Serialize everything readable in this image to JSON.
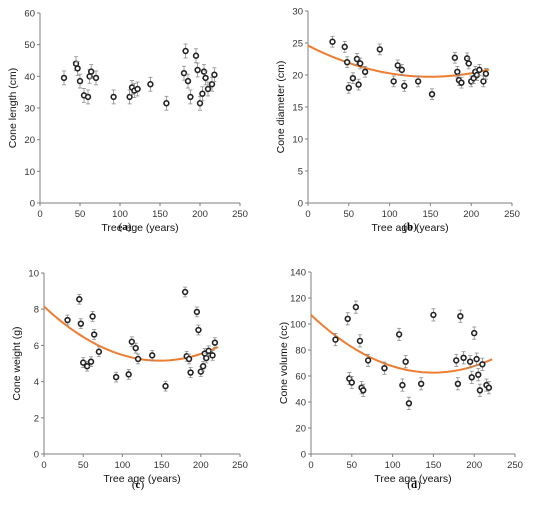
{
  "colors": {
    "fit": "#ed7d31",
    "axis": "#7f7f7f",
    "marker": "#222222",
    "errorbar": "#8c8c8c"
  },
  "chart_data": [
    {
      "type": "scatter",
      "panel_label": "a",
      "xlabel": "Tree age (years)",
      "ylabel": "Cone length (cm)",
      "xlim": [
        0,
        250
      ],
      "ylim": [
        0,
        60
      ],
      "xticks": [
        0,
        50,
        100,
        150,
        200,
        250
      ],
      "yticks": [
        0,
        10,
        20,
        30,
        40,
        50,
        60
      ],
      "grid": false,
      "points": [
        {
          "x": 30,
          "y": 39.5
        },
        {
          "x": 45,
          "y": 44
        },
        {
          "x": 47,
          "y": 42.5
        },
        {
          "x": 50,
          "y": 38.5
        },
        {
          "x": 55,
          "y": 34
        },
        {
          "x": 60,
          "y": 33.5
        },
        {
          "x": 62,
          "y": 40
        },
        {
          "x": 64,
          "y": 41.5
        },
        {
          "x": 70,
          "y": 39.5
        },
        {
          "x": 92,
          "y": 33.5
        },
        {
          "x": 112,
          "y": 33.5
        },
        {
          "x": 115,
          "y": 36.5
        },
        {
          "x": 118,
          "y": 35.5
        },
        {
          "x": 122,
          "y": 36
        },
        {
          "x": 138,
          "y": 37.5
        },
        {
          "x": 158,
          "y": 31.5
        },
        {
          "x": 180,
          "y": 41
        },
        {
          "x": 182,
          "y": 48
        },
        {
          "x": 185,
          "y": 38.5
        },
        {
          "x": 188,
          "y": 33.5
        },
        {
          "x": 195,
          "y": 46.5
        },
        {
          "x": 197,
          "y": 42
        },
        {
          "x": 200,
          "y": 31.5
        },
        {
          "x": 203,
          "y": 34.5
        },
        {
          "x": 205,
          "y": 41.5
        },
        {
          "x": 207,
          "y": 39.5
        },
        {
          "x": 210,
          "y": 36
        },
        {
          "x": 215,
          "y": 37.5
        },
        {
          "x": 218,
          "y": 40.5
        }
      ],
      "error": 1.5,
      "fit": null
    },
    {
      "type": "scatter",
      "panel_label": "b",
      "xlabel": "Tree age (years)",
      "ylabel": "Cone diameter (cm)",
      "xlim": [
        0,
        250
      ],
      "ylim": [
        0,
        30
      ],
      "xticks": [
        0,
        50,
        100,
        150,
        200,
        250
      ],
      "yticks": [
        0,
        5,
        10,
        15,
        20,
        25,
        30
      ],
      "grid": false,
      "points": [
        {
          "x": 30,
          "y": 25.2
        },
        {
          "x": 45,
          "y": 24.4
        },
        {
          "x": 48,
          "y": 22
        },
        {
          "x": 50,
          "y": 18
        },
        {
          "x": 55,
          "y": 19.5
        },
        {
          "x": 60,
          "y": 22.5
        },
        {
          "x": 62,
          "y": 18.5
        },
        {
          "x": 64,
          "y": 21.8
        },
        {
          "x": 70,
          "y": 20.5
        },
        {
          "x": 88,
          "y": 24
        },
        {
          "x": 105,
          "y": 19
        },
        {
          "x": 110,
          "y": 21.5
        },
        {
          "x": 115,
          "y": 20.8
        },
        {
          "x": 118,
          "y": 18.3
        },
        {
          "x": 135,
          "y": 19
        },
        {
          "x": 152,
          "y": 17
        },
        {
          "x": 180,
          "y": 22.7
        },
        {
          "x": 183,
          "y": 20.5
        },
        {
          "x": 185,
          "y": 19.2
        },
        {
          "x": 188,
          "y": 18.8
        },
        {
          "x": 195,
          "y": 22.6
        },
        {
          "x": 197,
          "y": 21.8
        },
        {
          "x": 200,
          "y": 19
        },
        {
          "x": 203,
          "y": 19.5
        },
        {
          "x": 205,
          "y": 20.5
        },
        {
          "x": 207,
          "y": 20
        },
        {
          "x": 210,
          "y": 20.8
        },
        {
          "x": 215,
          "y": 19
        },
        {
          "x": 218,
          "y": 20.2
        }
      ],
      "error": 0.5,
      "fit": {
        "x_range": [
          0,
          222
        ],
        "coefficients": [
          24.6,
          -0.0652,
          0.000218
        ]
      }
    },
    {
      "type": "scatter",
      "panel_label": "c",
      "xlabel": "Tree age (years)",
      "ylabel": "Cone weight (g)",
      "xlim": [
        0,
        250
      ],
      "ylim": [
        0,
        10
      ],
      "xticks": [
        0,
        50,
        100,
        150,
        200,
        250
      ],
      "yticks": [
        0,
        2,
        4,
        6,
        8,
        10
      ],
      "grid": false,
      "points": [
        {
          "x": 30,
          "y": 7.4
        },
        {
          "x": 45,
          "y": 8.55
        },
        {
          "x": 47,
          "y": 7.2
        },
        {
          "x": 50,
          "y": 5.05
        },
        {
          "x": 55,
          "y": 4.85
        },
        {
          "x": 60,
          "y": 5.1
        },
        {
          "x": 62,
          "y": 7.6
        },
        {
          "x": 64,
          "y": 6.6
        },
        {
          "x": 70,
          "y": 5.65
        },
        {
          "x": 92,
          "y": 4.25
        },
        {
          "x": 108,
          "y": 4.4
        },
        {
          "x": 112,
          "y": 6.2
        },
        {
          "x": 117,
          "y": 5.85
        },
        {
          "x": 120,
          "y": 5.25
        },
        {
          "x": 138,
          "y": 5.45
        },
        {
          "x": 155,
          "y": 3.75
        },
        {
          "x": 180,
          "y": 8.95
        },
        {
          "x": 182,
          "y": 5.4
        },
        {
          "x": 185,
          "y": 5.25
        },
        {
          "x": 187,
          "y": 4.5
        },
        {
          "x": 195,
          "y": 7.85
        },
        {
          "x": 197,
          "y": 6.85
        },
        {
          "x": 200,
          "y": 4.55
        },
        {
          "x": 203,
          "y": 4.85
        },
        {
          "x": 205,
          "y": 5.55
        },
        {
          "x": 207,
          "y": 5.3
        },
        {
          "x": 210,
          "y": 5.7
        },
        {
          "x": 215,
          "y": 5.45
        },
        {
          "x": 218,
          "y": 6.15
        }
      ],
      "error": 0.15,
      "fit": {
        "x_range": [
          0,
          222
        ],
        "coefficients": [
          8.15,
          -0.0405,
          0.000137
        ]
      }
    },
    {
      "type": "scatter",
      "panel_label": "d",
      "xlabel": "Tree age (years)",
      "ylabel": "Cone volume (cc)",
      "xlim": [
        0,
        250
      ],
      "ylim": [
        0,
        140
      ],
      "xticks": [
        0,
        50,
        100,
        150,
        200,
        250
      ],
      "yticks": [
        0,
        20,
        40,
        60,
        80,
        100,
        120,
        140
      ],
      "grid": false,
      "points": [
        {
          "x": 30,
          "y": 88
        },
        {
          "x": 45,
          "y": 104
        },
        {
          "x": 47,
          "y": 58
        },
        {
          "x": 50,
          "y": 55
        },
        {
          "x": 55,
          "y": 113
        },
        {
          "x": 60,
          "y": 87
        },
        {
          "x": 62,
          "y": 51
        },
        {
          "x": 64,
          "y": 49
        },
        {
          "x": 70,
          "y": 72
        },
        {
          "x": 90,
          "y": 66
        },
        {
          "x": 108,
          "y": 92
        },
        {
          "x": 112,
          "y": 53
        },
        {
          "x": 116,
          "y": 71
        },
        {
          "x": 120,
          "y": 39
        },
        {
          "x": 135,
          "y": 54
        },
        {
          "x": 150,
          "y": 107
        },
        {
          "x": 178,
          "y": 72
        },
        {
          "x": 180,
          "y": 54
        },
        {
          "x": 183,
          "y": 106
        },
        {
          "x": 187,
          "y": 74
        },
        {
          "x": 195,
          "y": 71
        },
        {
          "x": 197,
          "y": 59
        },
        {
          "x": 200,
          "y": 93
        },
        {
          "x": 203,
          "y": 73
        },
        {
          "x": 205,
          "y": 61
        },
        {
          "x": 207,
          "y": 49
        },
        {
          "x": 210,
          "y": 69
        },
        {
          "x": 215,
          "y": 53
        },
        {
          "x": 218,
          "y": 51
        }
      ],
      "error": 3,
      "fit": {
        "x_range": [
          0,
          222
        ],
        "coefficients": [
          107,
          -0.593,
          0.00198
        ]
      }
    }
  ]
}
